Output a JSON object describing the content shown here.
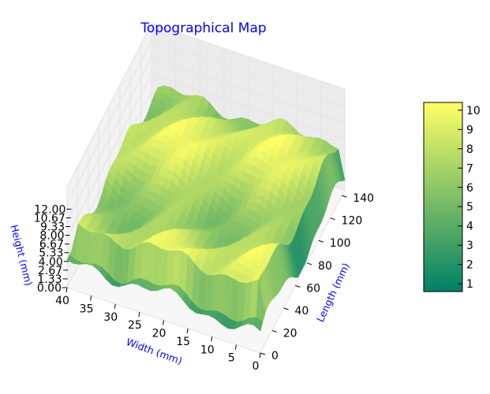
{
  "chart_data": {
    "type": "surface3d",
    "title": "Topographical Map",
    "xlabel": "Width (mm)",
    "ylabel": "Length (mm)",
    "zlabel": "Height (mm)",
    "x_ticks": [
      "0",
      "5",
      "10",
      "15",
      "20",
      "25",
      "30",
      "35",
      "40"
    ],
    "y_ticks": [
      "0",
      "20",
      "40",
      "60",
      "80",
      "100",
      "120",
      "140"
    ],
    "z_ticks": [
      "0.00",
      "1.33",
      "2.67",
      "4.00",
      "5.33",
      "6.67",
      "8.00",
      "9.33",
      "10.67",
      "12.00"
    ],
    "xlim": [
      0,
      40
    ],
    "ylim": [
      0,
      145
    ],
    "zlim": [
      0,
      12
    ],
    "colorbar": {
      "ticks": [
        "1",
        "2",
        "3",
        "4",
        "5",
        "6",
        "7",
        "8",
        "9",
        "10"
      ],
      "range": [
        0.6,
        10.4
      ],
      "colormap": "summer",
      "colors": [
        "#008066",
        "#ffff66"
      ]
    },
    "surface_range": [
      0.5,
      10.4
    ],
    "title_color": "#0000ff",
    "label_color": "#0000ff"
  }
}
